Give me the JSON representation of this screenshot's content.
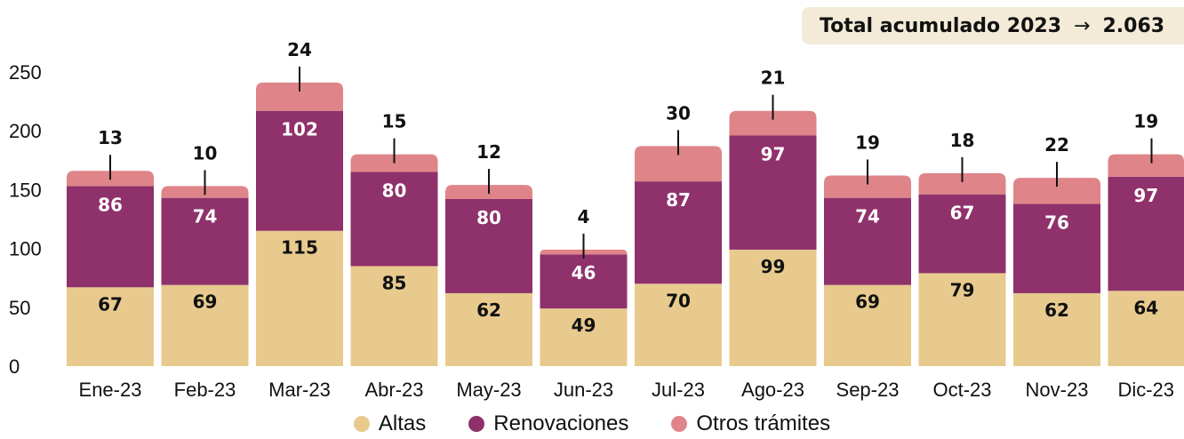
{
  "summary": {
    "label": "Total acumulado 2023",
    "arrow": "→",
    "value": "2.063"
  },
  "colors": {
    "Altas": "#e8ca8e",
    "Renovaciones": "#8f316b",
    "Otros trámites": "#df8589"
  },
  "chart_data": {
    "type": "bar",
    "stacked": true,
    "title": "",
    "xlabel": "",
    "ylabel": "",
    "ylim": [
      0,
      250
    ],
    "yticks": [
      0,
      50,
      100,
      150,
      200,
      250
    ],
    "grid": false,
    "legend": "bottom",
    "categories": [
      "Ene-23",
      "Feb-23",
      "Mar-23",
      "Abr-23",
      "May-23",
      "Jun-23",
      "Jul-23",
      "Ago-23",
      "Sep-23",
      "Oct-23",
      "Nov-23",
      "Dic-23"
    ],
    "series": [
      {
        "name": "Altas",
        "values": [
          67,
          69,
          115,
          85,
          62,
          49,
          70,
          99,
          69,
          79,
          62,
          64
        ]
      },
      {
        "name": "Renovaciones",
        "values": [
          86,
          74,
          102,
          80,
          80,
          46,
          87,
          97,
          74,
          67,
          76,
          97
        ]
      },
      {
        "name": "Otros trámites",
        "values": [
          13,
          10,
          24,
          15,
          12,
          4,
          30,
          21,
          19,
          18,
          22,
          19
        ]
      }
    ]
  }
}
